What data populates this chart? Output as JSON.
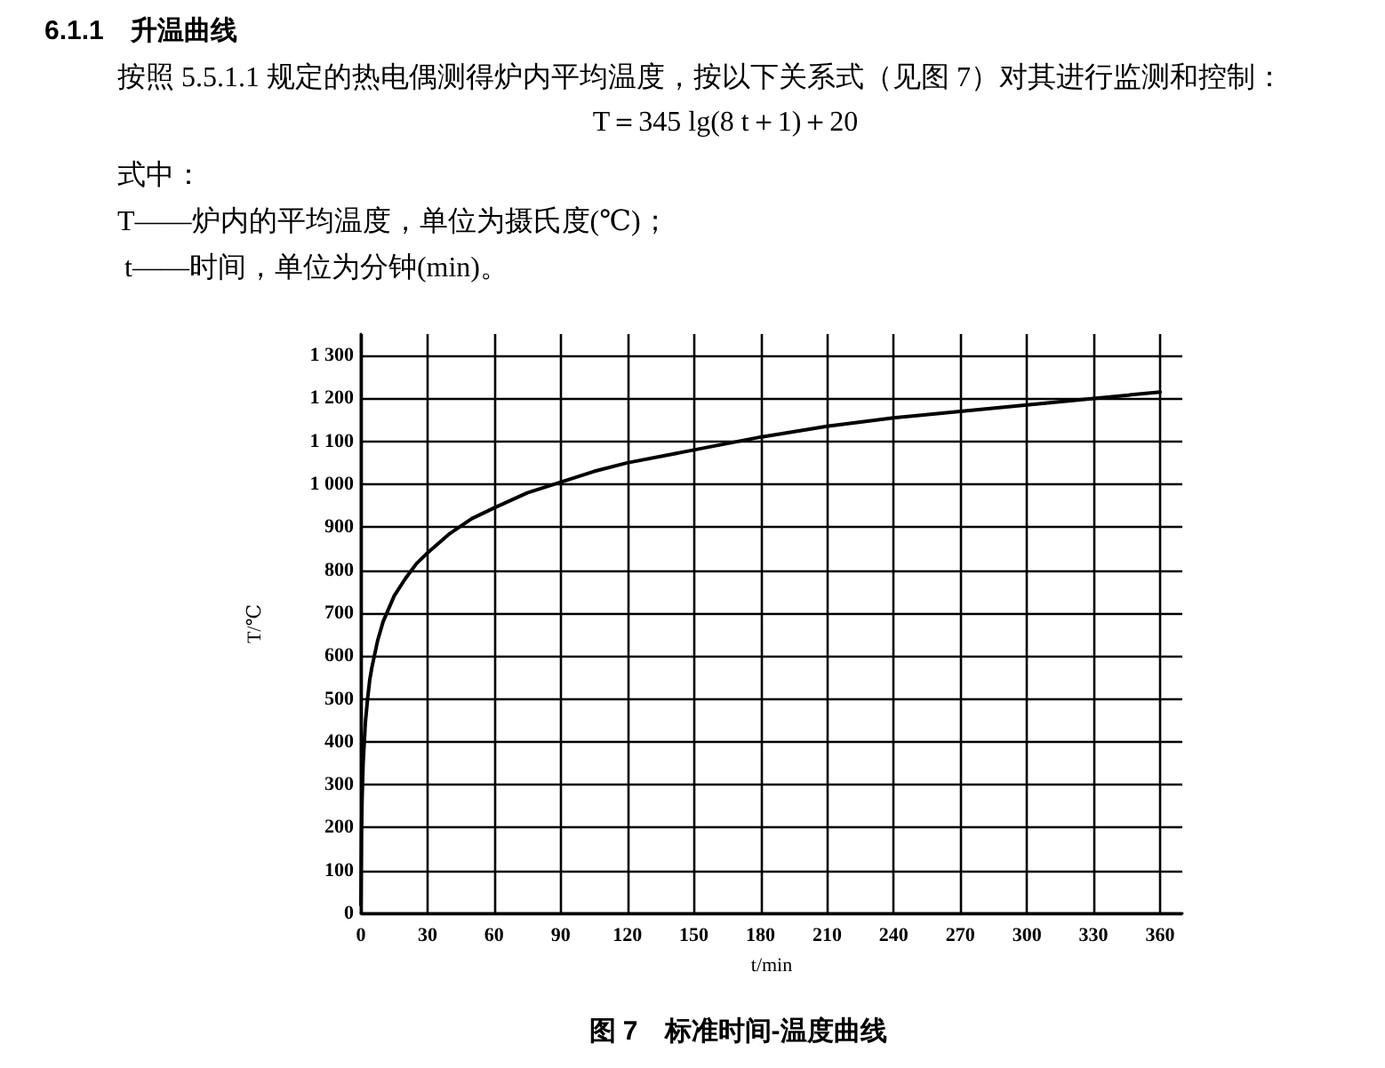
{
  "chart_data": {
    "type": "line",
    "title": "图 7　标准时间-温度曲线",
    "annotations": [
      "6.1.1　升温曲线",
      "按照 5.5.1.1 规定的热电偶测得炉内平均温度，按以下关系式（见图 7）对其进行监测和控制：",
      "T＝345 lg(8 t＋1)＋20",
      "式中：",
      "T——炉内的平均温度，单位为摄氏度(℃)；",
      "t——时间，单位为分钟(min)。"
    ],
    "xlabel": "t/min",
    "ylabel": "T/℃",
    "x": [
      0,
      0.25,
      0.5,
      1,
      2,
      3,
      4,
      5,
      7.5,
      10,
      15,
      20,
      25,
      30,
      40,
      50,
      60,
      75,
      90,
      105,
      120,
      150,
      180,
      210,
      240,
      270,
      300,
      330,
      360
    ],
    "series": [
      {
        "color": "#000000",
        "values": [
          20,
          185,
          260,
          350,
          445,
          500,
          545,
          575,
          635,
          680,
          740,
          780,
          815,
          840,
          885,
          920,
          945,
          980,
          1005,
          1030,
          1050,
          1080,
          1110,
          1135,
          1155,
          1170,
          1185,
          1200,
          1215
        ]
      }
    ],
    "xlim": [
      0,
      370
    ],
    "xticks": [
      0,
      30,
      60,
      90,
      120,
      150,
      180,
      210,
      240,
      270,
      300,
      330,
      360
    ],
    "ylim": [
      0,
      1350
    ],
    "yticks": [
      0,
      100,
      200,
      300,
      400,
      500,
      600,
      700,
      800,
      900,
      {
        "value": 1000,
        "label": "1 000"
      },
      {
        "value": 1100,
        "label": "1 100"
      },
      {
        "value": 1200,
        "label": "1 200"
      },
      {
        "value": 1300,
        "label": "1 300"
      }
    ],
    "grid": true
  }
}
